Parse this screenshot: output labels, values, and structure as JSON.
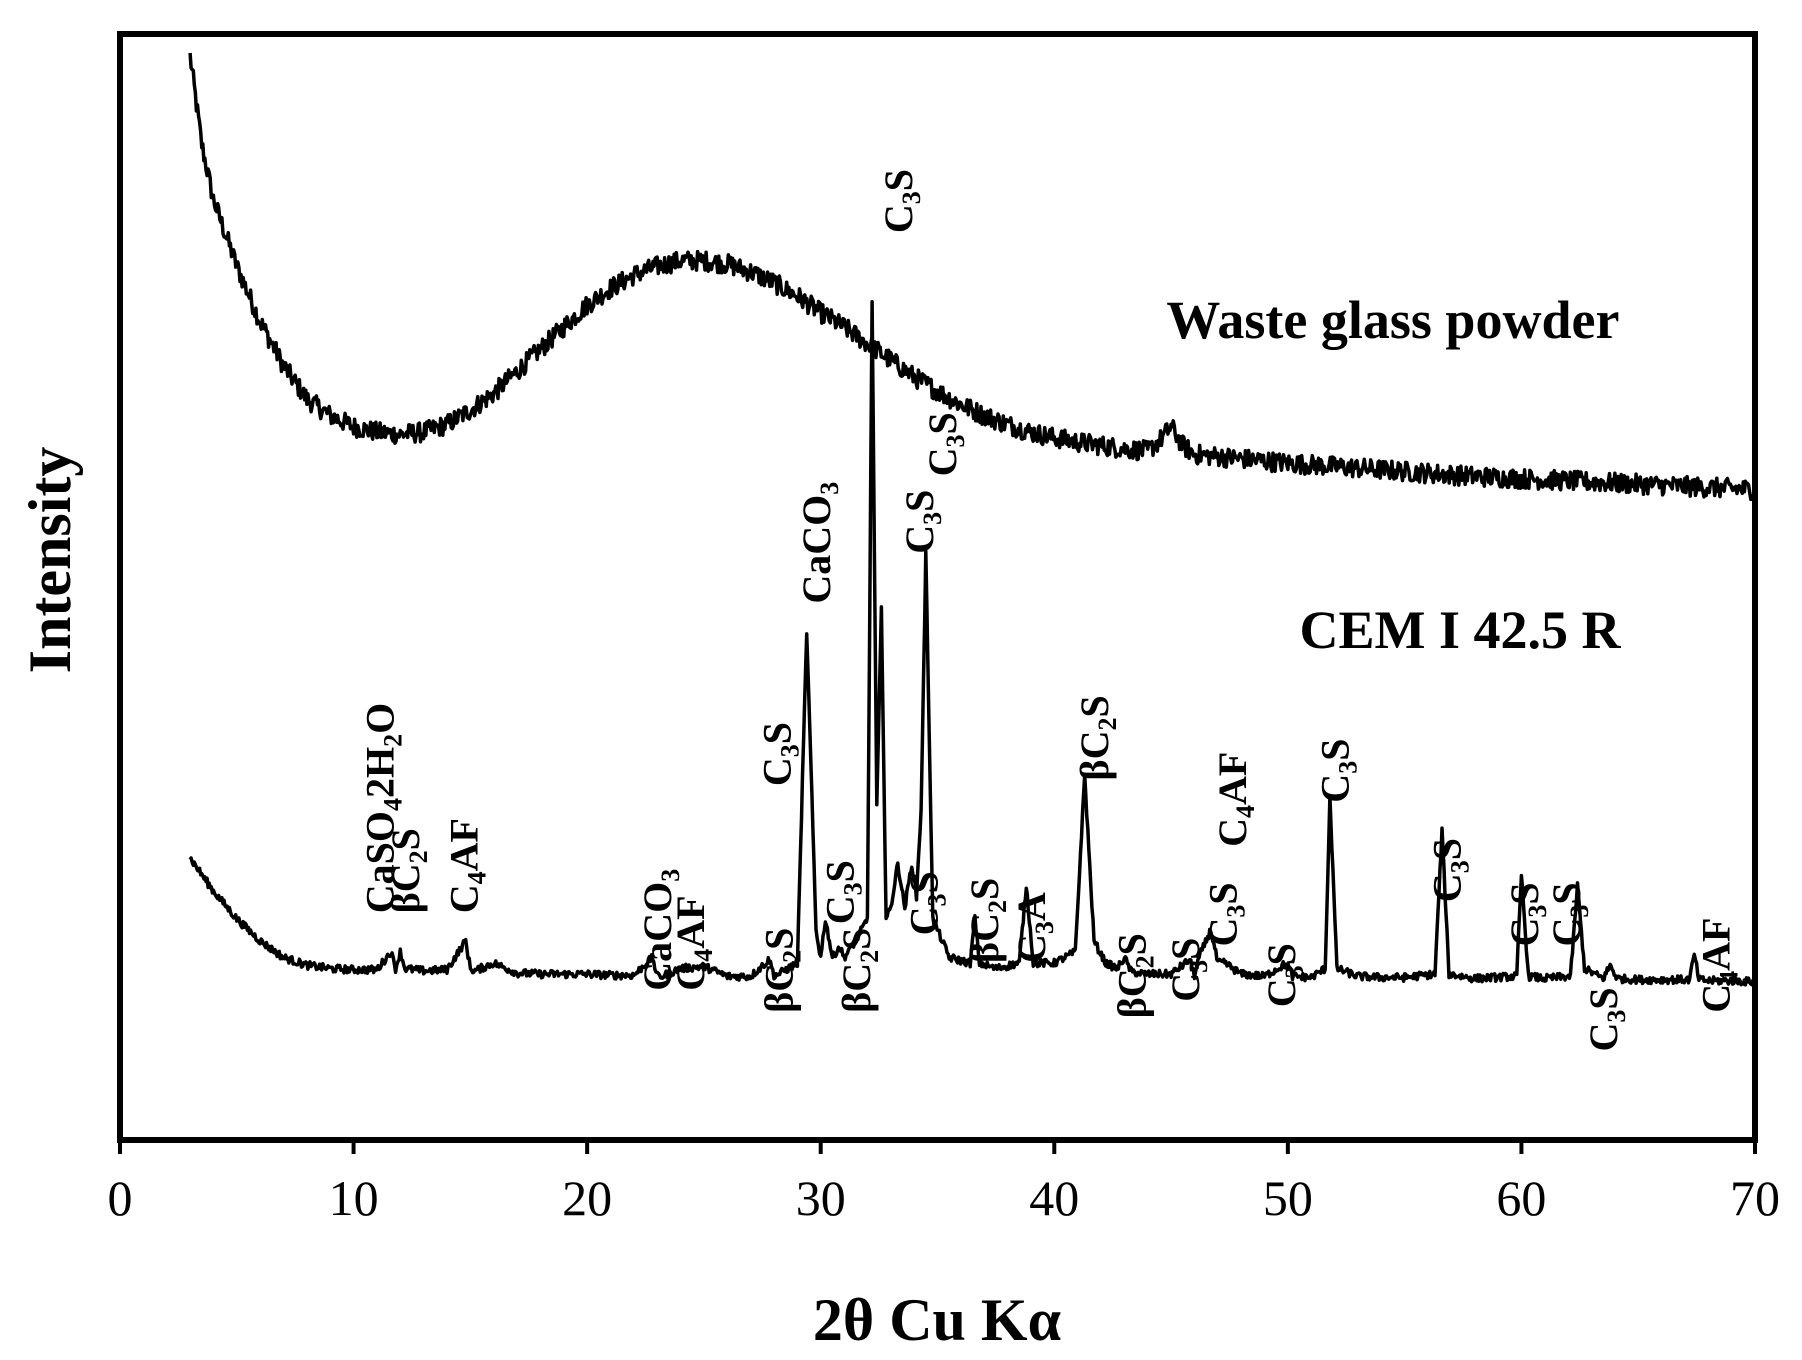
{
  "chart_data": {
    "type": "line",
    "xlabel": "2θ Cu Kα",
    "ylabel": "Intensity",
    "xlim": [
      0,
      70
    ],
    "xticks": [
      "0",
      "10",
      "20",
      "30",
      "40",
      "50",
      "60",
      "70"
    ],
    "grid": false,
    "y_tick_labels": false,
    "series": [
      {
        "name": "Waste glass powder",
        "x": [
          3,
          3.5,
          4,
          5,
          6,
          7,
          8,
          9,
          10,
          11,
          12,
          13,
          14,
          15,
          16,
          17,
          18,
          19,
          20,
          21,
          22,
          23,
          24,
          25,
          26,
          27,
          28,
          29,
          30,
          31,
          32,
          33,
          34,
          35,
          36,
          37,
          38,
          39,
          40,
          41,
          42,
          43,
          44,
          44.5,
          45,
          45.5,
          46,
          48,
          50,
          52,
          54,
          56,
          58,
          60,
          62,
          64,
          66,
          68,
          70
        ],
        "y": [
          0.98,
          0.9,
          0.85,
          0.79,
          0.74,
          0.7,
          0.67,
          0.655,
          0.645,
          0.64,
          0.638,
          0.64,
          0.647,
          0.66,
          0.675,
          0.695,
          0.715,
          0.735,
          0.755,
          0.77,
          0.782,
          0.79,
          0.795,
          0.795,
          0.792,
          0.785,
          0.775,
          0.763,
          0.748,
          0.735,
          0.72,
          0.705,
          0.69,
          0.677,
          0.665,
          0.655,
          0.647,
          0.64,
          0.635,
          0.631,
          0.628,
          0.625,
          0.623,
          0.632,
          0.645,
          0.628,
          0.62,
          0.616,
          0.612,
          0.609,
          0.606,
          0.603,
          0.6,
          0.598,
          0.596,
          0.594,
          0.592,
          0.59,
          0.588
        ]
      },
      {
        "name": "CEM I 42.5 R",
        "x": [
          3,
          4,
          5,
          6,
          7,
          8,
          9,
          10,
          11,
          11.6,
          11.8,
          12.0,
          12.2,
          13,
          14,
          14.8,
          15.0,
          15.2,
          16,
          17,
          18,
          19,
          20,
          21,
          22,
          22.8,
          23.0,
          23.2,
          24,
          25,
          26,
          27,
          27.8,
          28.0,
          28.2,
          29.0,
          29.4,
          29.8,
          30.0,
          30.2,
          30.5,
          30.8,
          31.0,
          31.5,
          32.0,
          32.2,
          32.4,
          32.6,
          32.8,
          33.0,
          33.3,
          33.6,
          33.9,
          34.1,
          34.3,
          34.5,
          34.8,
          35.5,
          36.4,
          36.6,
          36.8,
          37.5,
          38.5,
          38.8,
          39.1,
          40,
          40.9,
          41.3,
          41.7,
          42.2,
          42.7,
          43.0,
          43.3,
          44,
          45,
          45.8,
          46.0,
          46.2,
          46.7,
          47.0,
          47.3,
          48,
          49,
          49.8,
          50.0,
          50.2,
          51,
          51.6,
          51.8,
          52.1,
          53,
          54,
          55,
          56.3,
          56.6,
          56.9,
          58,
          59.8,
          60.0,
          60.3,
          61,
          62.1,
          62.4,
          62.7,
          63.5,
          63.8,
          64.1,
          65,
          66,
          67.2,
          67.4,
          67.6,
          68,
          69,
          70
        ],
        "y": [
          0.255,
          0.225,
          0.2,
          0.18,
          0.165,
          0.158,
          0.155,
          0.154,
          0.154,
          0.17,
          0.155,
          0.17,
          0.155,
          0.153,
          0.154,
          0.18,
          0.155,
          0.153,
          0.16,
          0.151,
          0.15,
          0.15,
          0.15,
          0.149,
          0.149,
          0.165,
          0.148,
          0.148,
          0.155,
          0.157,
          0.148,
          0.148,
          0.163,
          0.149,
          0.15,
          0.16,
          0.46,
          0.19,
          0.165,
          0.2,
          0.165,
          0.175,
          0.165,
          0.18,
          0.2,
          0.76,
          0.3,
          0.48,
          0.2,
          0.21,
          0.25,
          0.21,
          0.25,
          0.22,
          0.3,
          0.53,
          0.2,
          0.165,
          0.16,
          0.2,
          0.16,
          0.155,
          0.16,
          0.23,
          0.16,
          0.16,
          0.17,
          0.33,
          0.18,
          0.16,
          0.155,
          0.165,
          0.152,
          0.15,
          0.15,
          0.163,
          0.149,
          0.165,
          0.19,
          0.16,
          0.16,
          0.15,
          0.148,
          0.158,
          0.158,
          0.148,
          0.147,
          0.155,
          0.31,
          0.155,
          0.148,
          0.147,
          0.147,
          0.15,
          0.28,
          0.15,
          0.146,
          0.148,
          0.24,
          0.148,
          0.146,
          0.148,
          0.23,
          0.155,
          0.146,
          0.158,
          0.146,
          0.145,
          0.145,
          0.145,
          0.168,
          0.145,
          0.144,
          0.144,
          0.143
        ]
      }
    ],
    "series_labels": [
      {
        "text": "Waste glass powder",
        "x": 44.8,
        "y": 0.725
      },
      {
        "text": "CEM I 42.5 R",
        "x": 50.5,
        "y": 0.445
      }
    ],
    "annotations": [
      {
        "label": "CaSO₄2H₂O",
        "x": 11.7,
        "y": 0.205
      },
      {
        "label": "βC₂S",
        "x": 12.8,
        "y": 0.205
      },
      {
        "label": "C₄AF",
        "x": 15.3,
        "y": 0.205
      },
      {
        "label": "CaCO₃",
        "x": 23.6,
        "y": 0.135
      },
      {
        "label": "C₄AF",
        "x": 25.0,
        "y": 0.135
      },
      {
        "label": "C₃S",
        "x": 28.7,
        "y": 0.32
      },
      {
        "label": "βC₂S",
        "x": 28.8,
        "y": 0.115
      },
      {
        "label": "CaCO₃",
        "x": 30.4,
        "y": 0.485
      },
      {
        "label": "C₃S",
        "x": 31.4,
        "y": 0.195
      },
      {
        "label": "βC₂S",
        "x": 32.1,
        "y": 0.115
      },
      {
        "label": "C₃S",
        "x": 33.9,
        "y": 0.82
      },
      {
        "label": "C₃S",
        "x": 34.8,
        "y": 0.53
      },
      {
        "label": "C₃S",
        "x": 35.8,
        "y": 0.6
      },
      {
        "label": "C₃S",
        "x": 35.0,
        "y": 0.185
      },
      {
        "label": "βC₂S",
        "x": 37.6,
        "y": 0.16
      },
      {
        "label": "C₃A",
        "x": 39.6,
        "y": 0.16
      },
      {
        "label": "βC₂S",
        "x": 42.3,
        "y": 0.325
      },
      {
        "label": "βC₂S",
        "x": 43.9,
        "y": 0.11
      },
      {
        "label": "C₃S",
        "x": 46.2,
        "y": 0.125
      },
      {
        "label": "C₃S",
        "x": 47.8,
        "y": 0.175
      },
      {
        "label": "C₄AF",
        "x": 48.2,
        "y": 0.265
      },
      {
        "label": "C₃S",
        "x": 50.3,
        "y": 0.12
      },
      {
        "label": "C₃S",
        "x": 52.6,
        "y": 0.305
      },
      {
        "label": "C₃S",
        "x": 57.4,
        "y": 0.215
      },
      {
        "label": "C₃S",
        "x": 60.7,
        "y": 0.175
      },
      {
        "label": "C₃S",
        "x": 62.5,
        "y": 0.175
      },
      {
        "label": "C₃S",
        "x": 64.1,
        "y": 0.08
      },
      {
        "label": "C₄AF",
        "x": 68.9,
        "y": 0.115
      }
    ]
  }
}
